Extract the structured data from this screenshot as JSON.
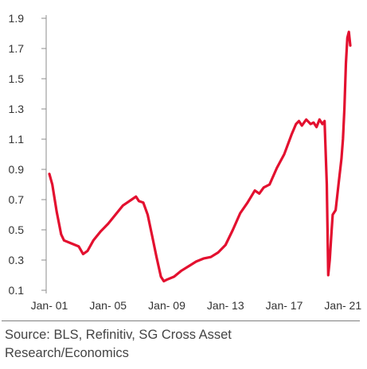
{
  "chart_data": {
    "type": "line",
    "title": "",
    "xlabel": "",
    "ylabel": "",
    "ylim": [
      0.1,
      1.9
    ],
    "yticks": [
      "0.1",
      "0.3",
      "0.5",
      "0.7",
      "0.9",
      "1.1",
      "1.3",
      "1.5",
      "1.7",
      "1.9"
    ],
    "xticks": [
      "Jan- 01",
      "Jan- 05",
      "Jan- 09",
      "Jan- 13",
      "Jan- 17",
      "Jan- 21"
    ],
    "xrange": [
      2001,
      2021.5
    ],
    "grid": false,
    "line_color": "#e3102f",
    "series": [
      {
        "x": [
          2001.0,
          2001.2,
          2001.5,
          2001.8,
          2002.0,
          2002.5,
          2003.0,
          2003.3,
          2003.6,
          2004.0,
          2004.5,
          2005.0,
          2005.5,
          2006.0,
          2006.3,
          2006.6,
          2006.9,
          2007.1,
          2007.4,
          2007.7,
          2008.0,
          2008.3,
          2008.6,
          2008.8,
          2009.0,
          2009.5,
          2010.0,
          2010.5,
          2011.0,
          2011.5,
          2012.0,
          2012.5,
          2013.0,
          2013.5,
          2014.0,
          2014.5,
          2015.0,
          2015.3,
          2015.6,
          2016.0,
          2016.5,
          2017.0,
          2017.5,
          2017.8,
          2018.0,
          2018.2,
          2018.5,
          2018.8,
          2019.0,
          2019.2,
          2019.4,
          2019.6,
          2019.75,
          2019.9,
          2020.0,
          2020.1,
          2020.2,
          2020.3,
          2020.5,
          2020.7,
          2020.9,
          2021.0,
          2021.1,
          2021.2,
          2021.3,
          2021.4,
          2021.5
        ],
        "values": [
          0.87,
          0.8,
          0.62,
          0.47,
          0.43,
          0.41,
          0.39,
          0.34,
          0.36,
          0.43,
          0.49,
          0.54,
          0.6,
          0.66,
          0.68,
          0.7,
          0.72,
          0.69,
          0.68,
          0.6,
          0.46,
          0.32,
          0.19,
          0.16,
          0.17,
          0.19,
          0.23,
          0.26,
          0.29,
          0.31,
          0.32,
          0.35,
          0.4,
          0.5,
          0.61,
          0.68,
          0.76,
          0.74,
          0.78,
          0.8,
          0.91,
          1.0,
          1.13,
          1.2,
          1.22,
          1.19,
          1.23,
          1.2,
          1.21,
          1.18,
          1.23,
          1.2,
          1.22,
          0.8,
          0.2,
          0.3,
          0.45,
          0.6,
          0.63,
          0.8,
          0.97,
          1.1,
          1.3,
          1.6,
          1.77,
          1.81,
          1.72
        ]
      }
    ]
  },
  "source_text": "Source: BLS, Refinitiv, SG Cross Asset Research/Economics"
}
